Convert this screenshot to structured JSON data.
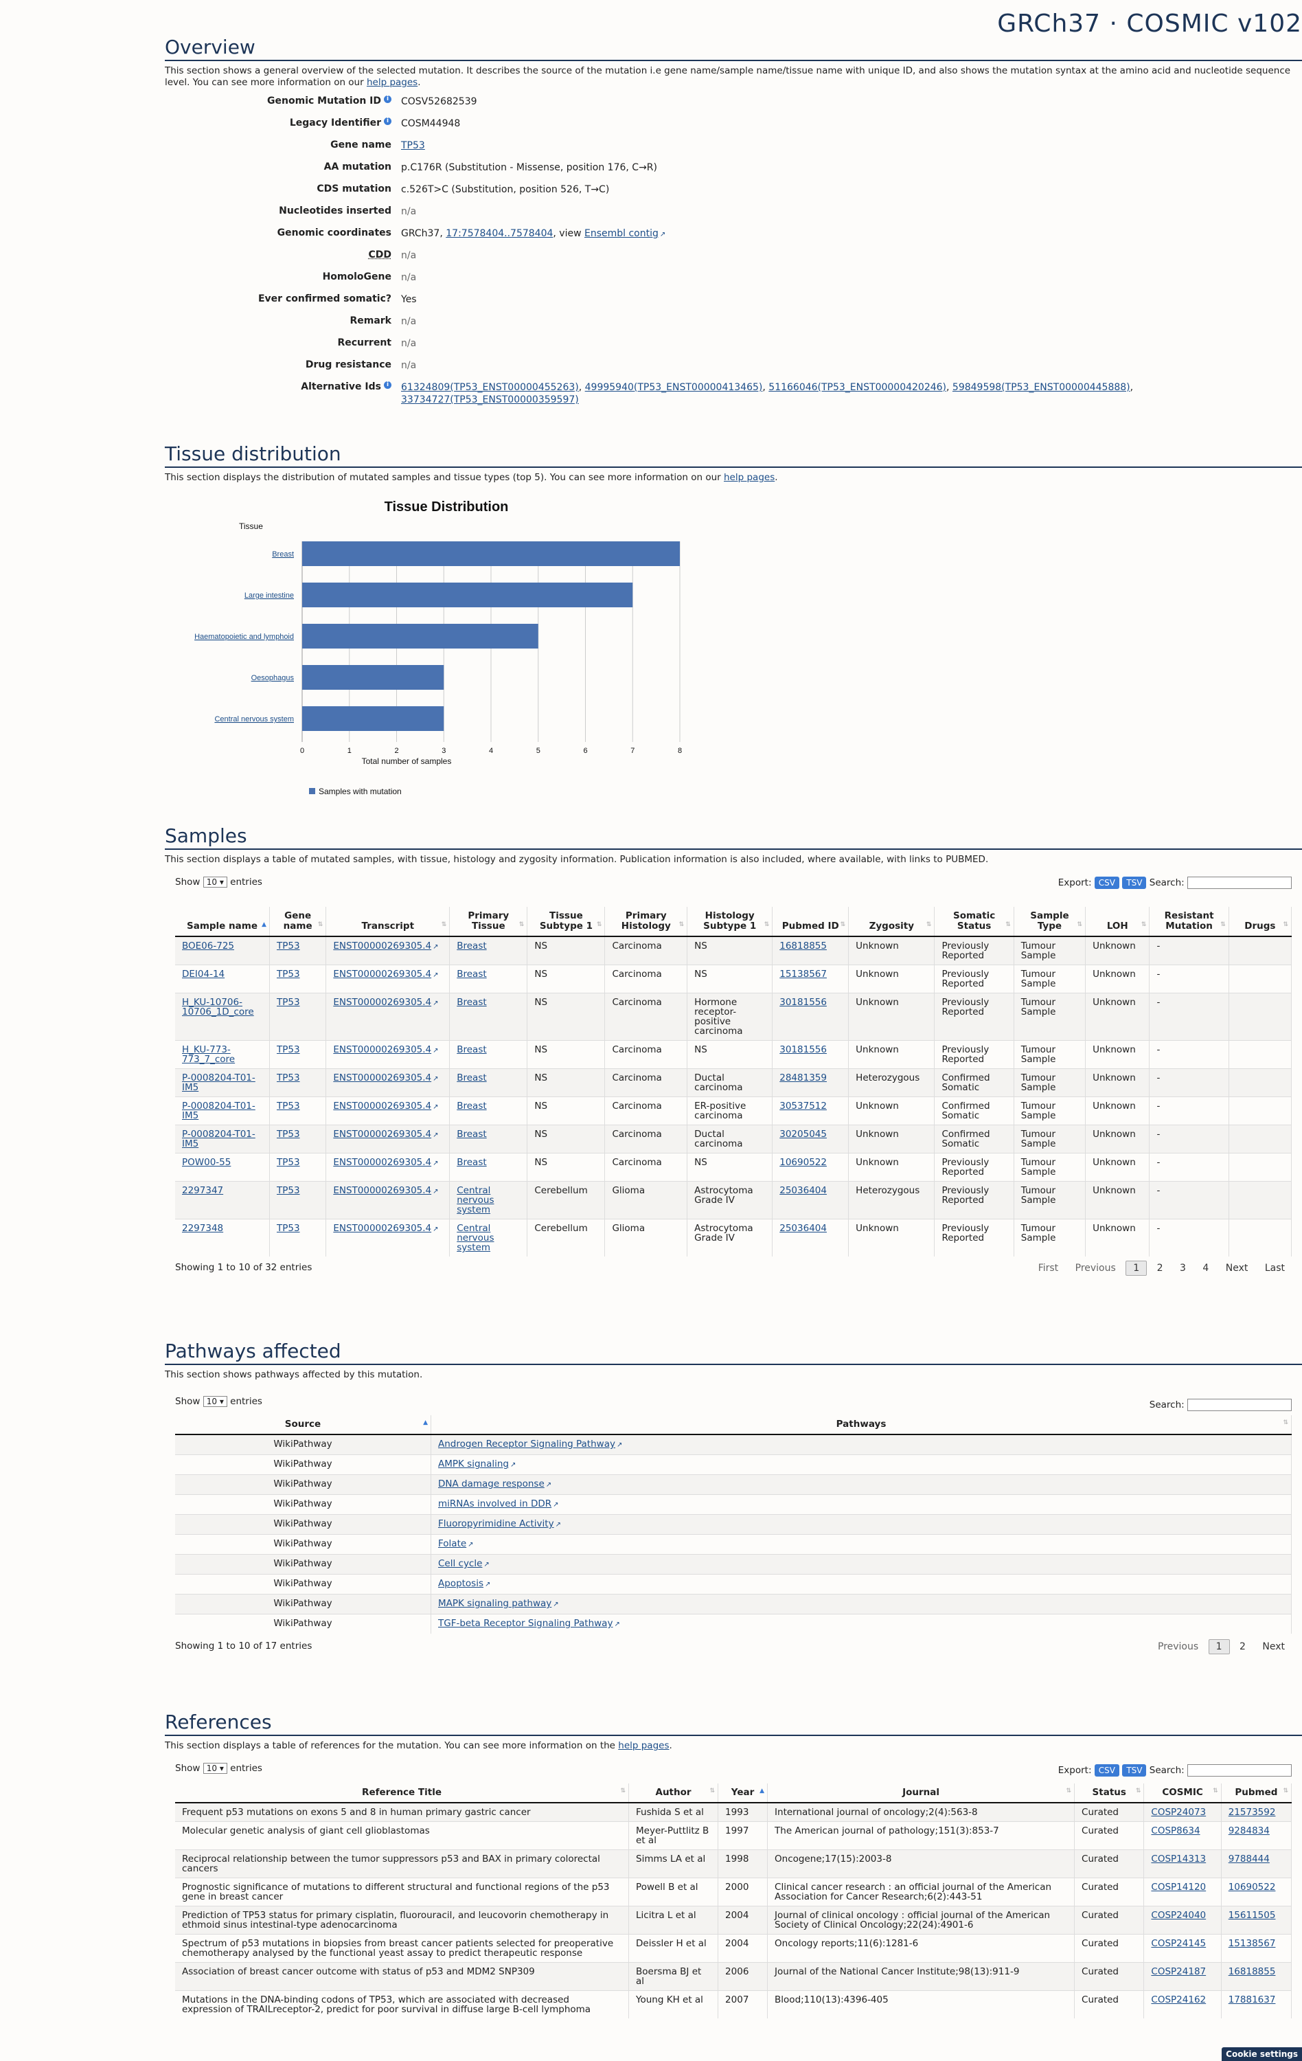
{
  "header": {
    "title": "GRCh37 · COSMIC v102"
  },
  "overview": {
    "heading": "Overview",
    "description_pre": "This section shows a general overview of the selected mutation. It describes the source of the mutation i.e gene name/sample name/tissue name with unique ID, and also shows the mutation syntax at the amino acid and nucleotide sequence level. You can see more information on our ",
    "help_link": "help pages",
    "description_post": ".",
    "fields": {
      "genomic_mutation_id": {
        "label": "Genomic Mutation ID",
        "value": "COSV52682539"
      },
      "legacy_identifier": {
        "label": "Legacy Identifier",
        "value": "COSM44948"
      },
      "gene_name": {
        "label": "Gene name",
        "value": "TP53"
      },
      "aa_mutation": {
        "label": "AA mutation",
        "value": "p.C176R (Substitution - Missense, position 176, C→R)"
      },
      "cds_mutation": {
        "label": "CDS mutation",
        "value": "c.526T>C (Substitution, position 526, T→C)"
      },
      "nucleotides_inserted": {
        "label": "Nucleotides inserted",
        "value": "n/a"
      },
      "genomic_coordinates": {
        "label": "Genomic coordinates",
        "prefix": "GRCh37, ",
        "coord": "17:7578404..7578404",
        "mid": ", view ",
        "link": "Ensembl contig"
      },
      "cdd": {
        "label": "CDD",
        "value": "n/a"
      },
      "homologene": {
        "label": "HomoloGene",
        "value": "n/a"
      },
      "ever_confirmed": {
        "label": "Ever confirmed somatic?",
        "value": "Yes"
      },
      "remark": {
        "label": "Remark",
        "value": "n/a"
      },
      "recurrent": {
        "label": "Recurrent",
        "value": "n/a"
      },
      "drug_resistance": {
        "label": "Drug resistance",
        "value": "n/a"
      },
      "alternative_ids": {
        "label": "Alternative Ids",
        "ids": [
          "61324809(TP53_ENST00000455263)",
          "49995940(TP53_ENST00000413465)",
          "51166046(TP53_ENST00000420246)",
          "59849598(TP53_ENST00000445888)",
          "33734727(TP53_ENST00000359597)"
        ]
      }
    }
  },
  "tissue": {
    "heading": "Tissue distribution",
    "description_pre": "This section displays the distribution of mutated samples and tissue types (top 5). You can see more information on our ",
    "help_link": "help pages",
    "description_post": "."
  },
  "chart_data": {
    "type": "bar",
    "orientation": "horizontal",
    "title": "Tissue Distribution",
    "ylabel": "Tissue",
    "xlabel": "Total number of samples",
    "categories": [
      "Breast",
      "Large intestine",
      "Haematopoietic and lymphoid",
      "Oesophagus",
      "Central nervous system"
    ],
    "series": [
      {
        "name": "Samples with mutation",
        "values": [
          8,
          7,
          5,
          3,
          3
        ]
      }
    ],
    "xlim": [
      0,
      8
    ],
    "xticks": [
      "0",
      "1",
      "2",
      "3",
      "4",
      "5",
      "6",
      "7",
      "8"
    ],
    "grid": true,
    "legend": "bottom-left",
    "color": "#4a72b0"
  },
  "samples": {
    "heading": "Samples",
    "description": "This section displays a table of mutated samples, with tissue, histology and zygosity information. Publication information is also included, where available, with links to PUBMED.",
    "show_label": "Show",
    "show_value": "10",
    "entries_label": "entries",
    "export_label": "Export:",
    "csv": "CSV",
    "tsv": "TSV",
    "search_label": "Search:",
    "columns": [
      "Sample name",
      "Gene name",
      "Transcript",
      "Primary Tissue",
      "Tissue Subtype 1",
      "Primary Histology",
      "Histology Subtype 1",
      "Pubmed ID",
      "Zygosity",
      "Somatic Status",
      "Sample Type",
      "LOH",
      "Resistant Mutation",
      "Drugs"
    ],
    "rows": [
      [
        "BOE06-725",
        "TP53",
        "ENST00000269305.4",
        "Breast",
        "NS",
        "Carcinoma",
        "NS",
        "16818855",
        "Unknown",
        "Previously Reported",
        "Tumour Sample",
        "Unknown",
        "-",
        ""
      ],
      [
        "DEI04-14",
        "TP53",
        "ENST00000269305.4",
        "Breast",
        "NS",
        "Carcinoma",
        "NS",
        "15138567",
        "Unknown",
        "Previously Reported",
        "Tumour Sample",
        "Unknown",
        "-",
        ""
      ],
      [
        "H_KU-10706-10706_1D_core",
        "TP53",
        "ENST00000269305.4",
        "Breast",
        "NS",
        "Carcinoma",
        "Hormone receptor-positive carcinoma",
        "30181556",
        "Unknown",
        "Previously Reported",
        "Tumour Sample",
        "Unknown",
        "-",
        ""
      ],
      [
        "H_KU-773-773_7_core",
        "TP53",
        "ENST00000269305.4",
        "Breast",
        "NS",
        "Carcinoma",
        "NS",
        "30181556",
        "Unknown",
        "Previously Reported",
        "Tumour Sample",
        "Unknown",
        "-",
        ""
      ],
      [
        "P-0008204-T01-IM5",
        "TP53",
        "ENST00000269305.4",
        "Breast",
        "NS",
        "Carcinoma",
        "Ductal carcinoma",
        "28481359",
        "Heterozygous",
        "Confirmed Somatic",
        "Tumour Sample",
        "Unknown",
        "-",
        ""
      ],
      [
        "P-0008204-T01-IM5",
        "TP53",
        "ENST00000269305.4",
        "Breast",
        "NS",
        "Carcinoma",
        "ER-positive carcinoma",
        "30537512",
        "Unknown",
        "Confirmed Somatic",
        "Tumour Sample",
        "Unknown",
        "-",
        ""
      ],
      [
        "P-0008204-T01-IM5",
        "TP53",
        "ENST00000269305.4",
        "Breast",
        "NS",
        "Carcinoma",
        "Ductal carcinoma",
        "30205045",
        "Unknown",
        "Confirmed Somatic",
        "Tumour Sample",
        "Unknown",
        "-",
        ""
      ],
      [
        "POW00-55",
        "TP53",
        "ENST00000269305.4",
        "Breast",
        "NS",
        "Carcinoma",
        "NS",
        "10690522",
        "Unknown",
        "Previously Reported",
        "Tumour Sample",
        "Unknown",
        "-",
        ""
      ],
      [
        "2297347",
        "TP53",
        "ENST00000269305.4",
        "Central nervous system",
        "Cerebellum",
        "Glioma",
        "Astrocytoma Grade IV",
        "25036404",
        "Heterozygous",
        "Previously Reported",
        "Tumour Sample",
        "Unknown",
        "-",
        ""
      ],
      [
        "2297348",
        "TP53",
        "ENST00000269305.4",
        "Central nervous system",
        "Cerebellum",
        "Glioma",
        "Astrocytoma Grade IV",
        "25036404",
        "Unknown",
        "Previously Reported",
        "Tumour Sample",
        "Unknown",
        "-",
        ""
      ]
    ],
    "info": "Showing 1 to 10 of 32 entries",
    "pager": {
      "first": "First",
      "previous": "Previous",
      "pages": [
        "1",
        "2",
        "3",
        "4"
      ],
      "next": "Next",
      "last": "Last"
    }
  },
  "pathways": {
    "heading": "Pathways affected",
    "description": "This section shows pathways affected by this mutation.",
    "show_label": "Show",
    "show_value": "10",
    "entries_label": "entries",
    "search_label": "Search:",
    "columns": [
      "Source",
      "Pathways"
    ],
    "rows": [
      [
        "WikiPathway",
        "Androgen Receptor Signaling Pathway"
      ],
      [
        "WikiPathway",
        "AMPK signaling"
      ],
      [
        "WikiPathway",
        "DNA damage response"
      ],
      [
        "WikiPathway",
        "miRNAs involved in DDR"
      ],
      [
        "WikiPathway",
        "Fluoropyrimidine Activity"
      ],
      [
        "WikiPathway",
        "Folate"
      ],
      [
        "WikiPathway",
        "Cell cycle"
      ],
      [
        "WikiPathway",
        "Apoptosis"
      ],
      [
        "WikiPathway",
        "MAPK signaling pathway"
      ],
      [
        "WikiPathway",
        "TGF-beta Receptor Signaling Pathway"
      ]
    ],
    "info": "Showing 1 to 10 of 17 entries",
    "pager": {
      "previous": "Previous",
      "pages": [
        "1",
        "2"
      ],
      "next": "Next"
    }
  },
  "references": {
    "heading": "References",
    "description_pre": "This section displays a table of references for the mutation. You can see more information on the ",
    "help_link": "help pages",
    "description_post": ".",
    "show_label": "Show",
    "show_value": "10",
    "entries_label": "entries",
    "export_label": "Export:",
    "csv": "CSV",
    "tsv": "TSV",
    "search_label": "Search:",
    "columns": [
      "Reference Title",
      "Author",
      "Year",
      "Journal",
      "Status",
      "COSMIC",
      "Pubmed"
    ],
    "rows": [
      [
        "Frequent p53 mutations on exons 5 and 8 in human primary gastric cancer",
        "Fushida S et al",
        "1993",
        "International journal of oncology;2(4):563-8",
        "Curated",
        "COSP24073",
        "21573592"
      ],
      [
        "Molecular genetic analysis of giant cell glioblastomas",
        "Meyer-Puttlitz B et al",
        "1997",
        "The American journal of pathology;151(3):853-7",
        "Curated",
        "COSP8634",
        "9284834"
      ],
      [
        "Reciprocal relationship between the tumor suppressors p53 and BAX in primary colorectal cancers",
        "Simms LA et al",
        "1998",
        "Oncogene;17(15):2003-8",
        "Curated",
        "COSP14313",
        "9788444"
      ],
      [
        "Prognostic significance of mutations to different structural and functional regions of the p53 gene in breast cancer",
        "Powell B et al",
        "2000",
        "Clinical cancer research : an official journal of the American Association for Cancer Research;6(2):443-51",
        "Curated",
        "COSP14120",
        "10690522"
      ],
      [
        "Prediction of TP53 status for primary cisplatin, fluorouracil, and leucovorin chemotherapy in ethmoid sinus intestinal-type adenocarcinoma",
        "Licitra L et al",
        "2004",
        "Journal of clinical oncology : official journal of the American Society of Clinical Oncology;22(24):4901-6",
        "Curated",
        "COSP24040",
        "15611505"
      ],
      [
        "Spectrum of p53 mutations in biopsies from breast cancer patients selected for preoperative chemotherapy analysed by the functional yeast assay to predict therapeutic response",
        "Deissler H et al",
        "2004",
        "Oncology reports;11(6):1281-6",
        "Curated",
        "COSP24145",
        "15138567"
      ],
      [
        "Association of breast cancer outcome with status of p53 and MDM2 SNP309",
        "Boersma BJ et al",
        "2006",
        "Journal of the National Cancer Institute;98(13):911-9",
        "Curated",
        "COSP24187",
        "16818855"
      ],
      [
        "Mutations in the DNA-binding codons of TP53, which are associated with decreased expression of TRAILreceptor-2, predict for poor survival in diffuse large B-cell lymphoma",
        "Young KH et al",
        "2007",
        "Blood;110(13):4396-405",
        "Curated",
        "COSP24162",
        "17881637"
      ]
    ]
  },
  "cookie": {
    "label": "Cookie settings"
  }
}
